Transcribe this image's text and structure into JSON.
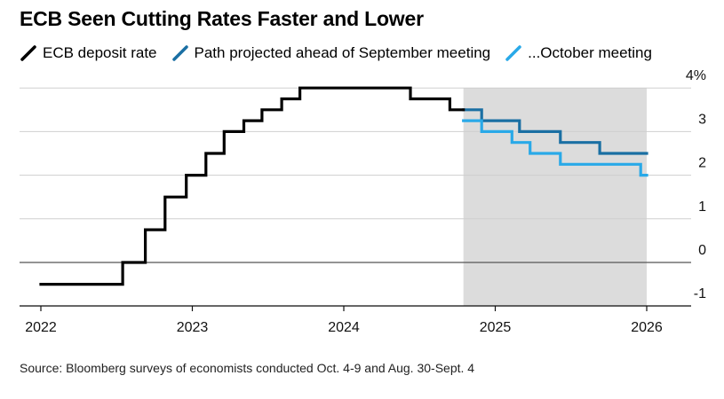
{
  "title": "ECB Seen Cutting Rates Faster and Lower",
  "source": "Source: Bloomberg surveys of economists conducted Oct. 4-9 and Aug. 30-Sept. 4",
  "colors": {
    "deposit": "#000000",
    "september": "#1a6fa3",
    "october": "#29a9e8",
    "shade": "#dcdcdc",
    "grid": "#cfcfcf",
    "zero": "#555555"
  },
  "chart_data": {
    "type": "line",
    "title": "ECB Seen Cutting Rates Faster and Lower",
    "xlabel": "",
    "ylabel": "",
    "xlim": [
      2022.0,
      2026.2
    ],
    "ylim": [
      -1,
      4
    ],
    "x_ticks": [
      2022,
      2023,
      2024,
      2025,
      2026
    ],
    "x_tick_labels": [
      "2022",
      "2023",
      "2024",
      "2025",
      "2026"
    ],
    "y_ticks": [
      4,
      3,
      2,
      1,
      0,
      -1
    ],
    "y_tick_labels": [
      "4%",
      "3",
      "2",
      "1",
      "0",
      "-1"
    ],
    "grid": true,
    "legend_position": "top-left",
    "shaded_region": {
      "x_start": 2024.79,
      "x_end": 2026.0
    },
    "series": [
      {
        "name": "ECB deposit rate",
        "step": true,
        "points": [
          [
            2022.0,
            -0.5
          ],
          [
            2022.54,
            -0.5
          ],
          [
            2022.54,
            0.0
          ],
          [
            2022.69,
            0.0
          ],
          [
            2022.69,
            0.75
          ],
          [
            2022.82,
            0.75
          ],
          [
            2022.82,
            1.5
          ],
          [
            2022.96,
            1.5
          ],
          [
            2022.96,
            2.0
          ],
          [
            2023.09,
            2.0
          ],
          [
            2023.09,
            2.5
          ],
          [
            2023.21,
            2.5
          ],
          [
            2023.21,
            3.0
          ],
          [
            2023.34,
            3.0
          ],
          [
            2023.34,
            3.25
          ],
          [
            2023.46,
            3.25
          ],
          [
            2023.46,
            3.5
          ],
          [
            2023.59,
            3.5
          ],
          [
            2023.59,
            3.75
          ],
          [
            2023.71,
            3.75
          ],
          [
            2023.71,
            4.0
          ],
          [
            2024.44,
            4.0
          ],
          [
            2024.44,
            3.75
          ],
          [
            2024.7,
            3.75
          ],
          [
            2024.7,
            3.5
          ],
          [
            2024.79,
            3.5
          ]
        ]
      },
      {
        "name": "Path projected ahead of September meeting",
        "step": true,
        "points": [
          [
            2024.79,
            3.5
          ],
          [
            2024.91,
            3.5
          ],
          [
            2024.91,
            3.25
          ],
          [
            2025.16,
            3.25
          ],
          [
            2025.16,
            3.0
          ],
          [
            2025.43,
            3.0
          ],
          [
            2025.43,
            2.75
          ],
          [
            2025.69,
            2.75
          ],
          [
            2025.69,
            2.5
          ],
          [
            2026.0,
            2.5
          ]
        ]
      },
      {
        "name": "...October meeting",
        "step": true,
        "points": [
          [
            2024.79,
            3.25
          ],
          [
            2024.91,
            3.25
          ],
          [
            2024.91,
            3.0
          ],
          [
            2025.11,
            3.0
          ],
          [
            2025.11,
            2.75
          ],
          [
            2025.23,
            2.75
          ],
          [
            2025.23,
            2.5
          ],
          [
            2025.43,
            2.5
          ],
          [
            2025.43,
            2.25
          ],
          [
            2025.96,
            2.25
          ],
          [
            2025.96,
            2.0
          ],
          [
            2026.0,
            2.0
          ]
        ]
      }
    ]
  }
}
